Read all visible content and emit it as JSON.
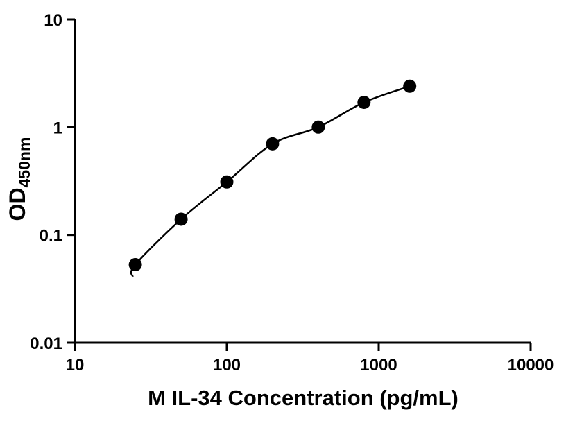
{
  "figure": {
    "background": "#ffffff",
    "foreground": "#000000"
  },
  "chart_data": {
    "type": "scatter",
    "title": "",
    "xlabel": "M IL-34 Concentration (pg/mL)",
    "ylabel": "OD450nm",
    "ylabel_main": "OD",
    "ylabel_sub": "450nm",
    "xscale": "log",
    "yscale": "log",
    "xlim": [
      10,
      10000
    ],
    "ylim": [
      0.01,
      10
    ],
    "x_ticks": [
      10,
      100,
      1000,
      10000
    ],
    "x_tick_labels": [
      "10",
      "100",
      "1000",
      "10000"
    ],
    "y_ticks": [
      0.01,
      0.1,
      1,
      10
    ],
    "y_tick_labels": [
      "0.01",
      "0.1",
      "1",
      "10"
    ],
    "grid": false,
    "legend": false,
    "series": [
      {
        "x": [
          25,
          50,
          100,
          200,
          400,
          800,
          1600
        ],
        "y": [
          0.053,
          0.14,
          0.31,
          0.7,
          1.0,
          1.7,
          2.4
        ],
        "marker": "circle",
        "marker_color": "#000000",
        "line": "smooth-fit-curve",
        "line_color": "#000000"
      }
    ],
    "curve_tail_point": {
      "x": 24,
      "y": 0.041
    }
  }
}
